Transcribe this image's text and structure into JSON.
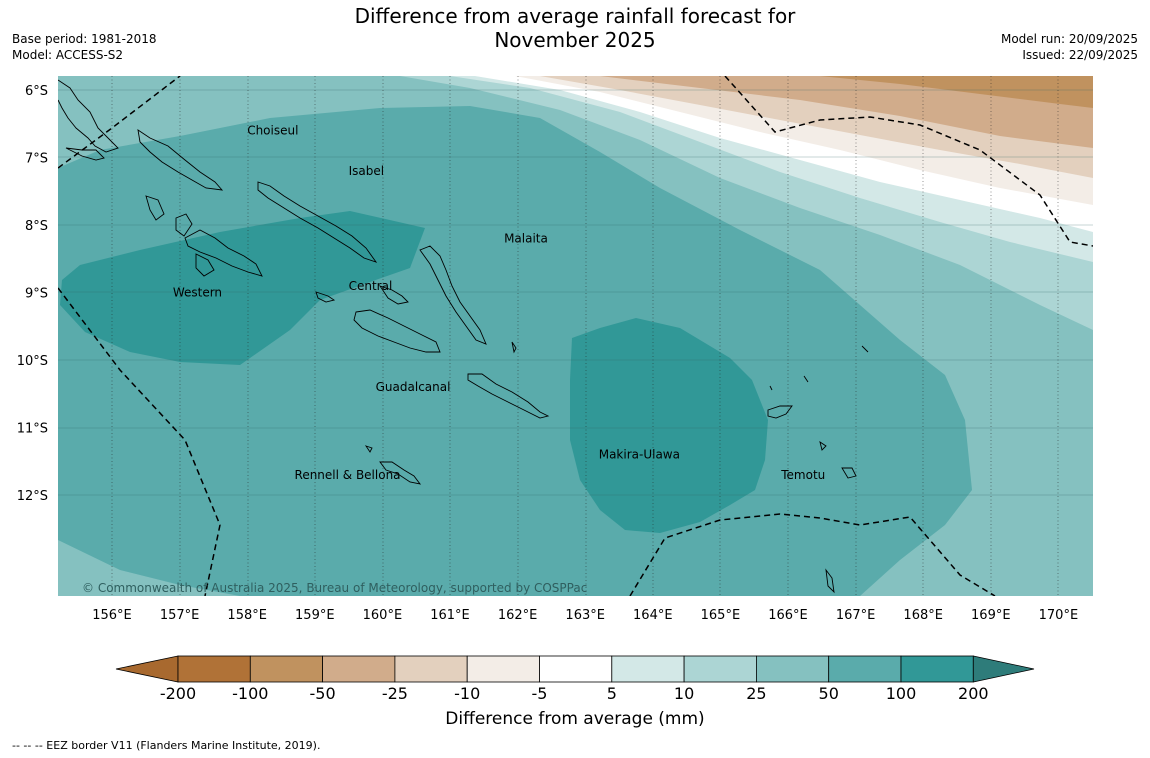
{
  "header": {
    "title_line1": "Difference from average rainfall forecast for",
    "title_line2": "November 2025",
    "base_period": "Base period: 1981-2018",
    "model": "Model: ACCESS-S2",
    "model_run": "Model run: 20/09/2025",
    "issued": "Issued: 22/09/2025"
  },
  "map": {
    "lon_range": [
      155.2,
      170.5
    ],
    "lat_range": [
      -13.5,
      -5.8
    ],
    "lon_ticks": [
      "156°E",
      "157°E",
      "158°E",
      "159°E",
      "160°E",
      "161°E",
      "162°E",
      "163°E",
      "164°E",
      "165°E",
      "166°E",
      "167°E",
      "168°E",
      "169°E",
      "170°E"
    ],
    "lat_ticks": [
      "6°S",
      "7°S",
      "8°S",
      "9°S",
      "10°S",
      "11°S",
      "12°S"
    ],
    "provinces": [
      {
        "name": "Choiseul",
        "lon": 158.0,
        "lat": -6.6
      },
      {
        "name": "Isabel",
        "lon": 159.5,
        "lat": -7.2
      },
      {
        "name": "Malaita",
        "lon": 161.8,
        "lat": -8.2
      },
      {
        "name": "Central",
        "lon": 159.5,
        "lat": -8.9
      },
      {
        "name": "Western",
        "lon": 156.9,
        "lat": -9.0
      },
      {
        "name": "Guadalcanal",
        "lon": 159.9,
        "lat": -10.4
      },
      {
        "name": "Makira-Ulawa",
        "lon": 163.2,
        "lat": -11.4
      },
      {
        "name": "Rennell & Bellona",
        "lon": 158.7,
        "lat": -11.7
      },
      {
        "name": "Temotu",
        "lon": 165.9,
        "lat": -11.7
      }
    ],
    "copyright": "© Commonwealth of Australia 2025, Bureau of Meteorology, supported by COSPPac",
    "colors": {
      "c50_100": "#5aabab",
      "c100_200": "#319897",
      "c25_50": "#85c1c0",
      "c10_25": "#acd5d4",
      "c5_10": "#d3e8e7",
      "cneg5_5": "#ffffff",
      "cneg10_neg5": "#f3ede7",
      "cneg25_neg10": "#e3d0be",
      "cneg50_neg25": "#d1ac8b",
      "cneg100_neg50": "#c0925f",
      "cneg200_neg100": "#b07237"
    }
  },
  "colorbar": {
    "ticks": [
      "-200",
      "-100",
      "-50",
      "-25",
      "-10",
      "-5",
      "5",
      "10",
      "25",
      "50",
      "100",
      "200"
    ],
    "colors": [
      "#a8692f",
      "#b07237",
      "#c0925f",
      "#d1ac8b",
      "#e3d0be",
      "#f3ede7",
      "#ffffff",
      "#d3e8e7",
      "#acd5d4",
      "#85c1c0",
      "#5aabab",
      "#319897",
      "#2e7c7a"
    ],
    "label": "Difference from average (mm)"
  },
  "footnote": "--  --  -- EEZ border V11 (Flanders Marine Institute, 2019)."
}
